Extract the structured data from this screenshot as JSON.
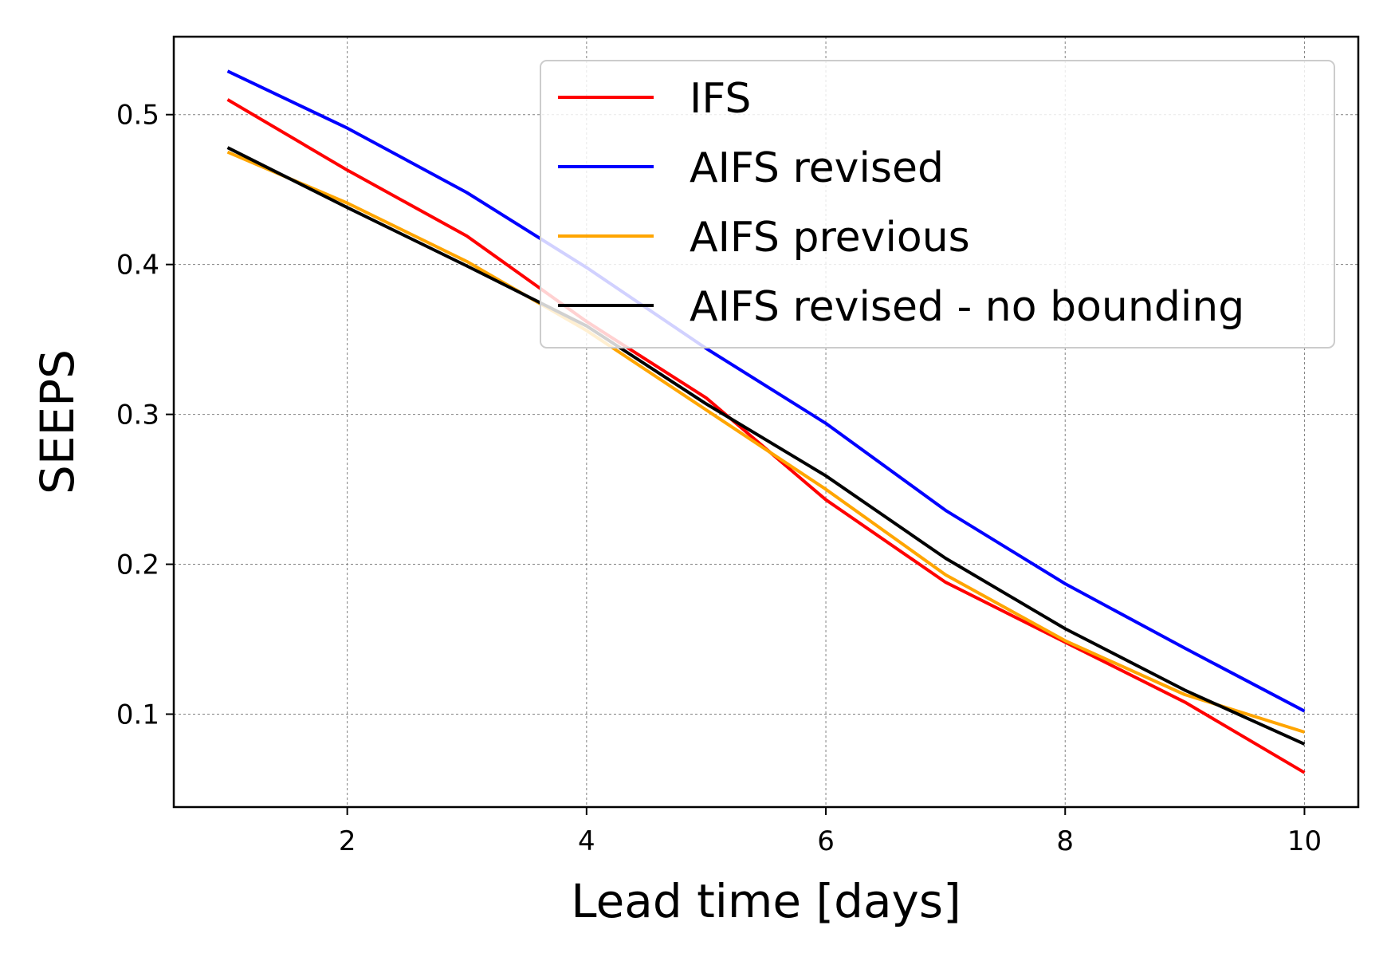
{
  "chart_data": {
    "type": "line",
    "xlabel": "Lead time [days]",
    "ylabel": "SEEPS",
    "xlim": [
      0.55,
      10.45
    ],
    "ylim": [
      0.038,
      0.552
    ],
    "xticks": [
      2,
      4,
      6,
      8,
      10
    ],
    "xtick_labels": [
      "2",
      "4",
      "6",
      "8",
      "10"
    ],
    "yticks": [
      0.1,
      0.2,
      0.3,
      0.4,
      0.5
    ],
    "ytick_labels": [
      "0.1",
      "0.2",
      "0.3",
      "0.4",
      "0.5"
    ],
    "grid": true,
    "legend_position": "top-right",
    "x": [
      1,
      2,
      3,
      4,
      5,
      6,
      7,
      8,
      9,
      10
    ],
    "series": [
      {
        "name": "IFS",
        "color": "#ff0000",
        "values": [
          0.51,
          0.463,
          0.419,
          0.362,
          0.311,
          0.243,
          0.188,
          0.148,
          0.108,
          0.061
        ]
      },
      {
        "name": "AIFS revised",
        "color": "#0000ff",
        "values": [
          0.529,
          0.491,
          0.448,
          0.398,
          0.344,
          0.294,
          0.236,
          0.187,
          0.144,
          0.102
        ]
      },
      {
        "name": "AIFS previous",
        "color": "#ffa500",
        "values": [
          0.475,
          0.441,
          0.402,
          0.356,
          0.303,
          0.25,
          0.193,
          0.149,
          0.113,
          0.088
        ]
      },
      {
        "name": "AIFS revised - no bounding",
        "color": "#000000",
        "values": [
          0.478,
          0.438,
          0.399,
          0.359,
          0.307,
          0.259,
          0.204,
          0.157,
          0.116,
          0.08
        ]
      }
    ]
  }
}
